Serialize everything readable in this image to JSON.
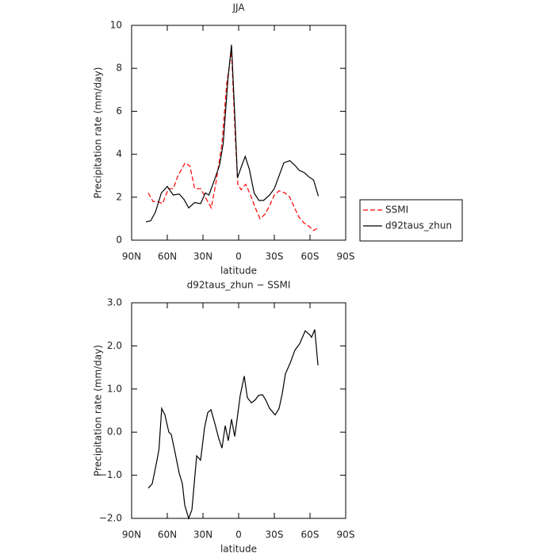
{
  "chart_data": [
    {
      "type": "line",
      "title": "JJA",
      "xlabel": "latitude",
      "ylabel": "Precipitation rate (mm/day)",
      "xlim": [
        90,
        -90
      ],
      "xticks": [
        {
          "value": 90,
          "label": "90N"
        },
        {
          "value": 60,
          "label": "60N"
        },
        {
          "value": 30,
          "label": "30N"
        },
        0,
        {
          "value": -30,
          "label": "30S"
        },
        {
          "value": -60,
          "label": "60S"
        },
        {
          "value": -90,
          "label": "90S"
        }
      ],
      "ylim": [
        0,
        10
      ],
      "yticks": [
        0,
        2,
        4,
        6,
        8,
        10
      ],
      "legend": "right",
      "series": [
        {
          "name": "SSMI",
          "color": "#ff0000",
          "linestyle": "dashed",
          "x": [
            76,
            72,
            68,
            64,
            59,
            55,
            51,
            45,
            41,
            37,
            32,
            27,
            23,
            19,
            14,
            10,
            6,
            3,
            0.7,
            -2,
            -6,
            -10,
            -14,
            -18,
            -22,
            -26,
            -30,
            -34,
            -39,
            -43,
            -47,
            -51,
            -55,
            -59,
            -63,
            -66
          ],
          "values": [
            2.2,
            1.8,
            1.8,
            1.7,
            2.4,
            2.4,
            3.0,
            3.6,
            3.45,
            2.4,
            2.4,
            1.9,
            1.5,
            2.7,
            4.5,
            7.3,
            8.8,
            5.0,
            2.6,
            2.35,
            2.6,
            2.1,
            1.5,
            1.0,
            1.2,
            1.6,
            2.1,
            2.3,
            2.2,
            2.0,
            1.5,
            1.05,
            0.8,
            0.65,
            0.45,
            0.55
          ]
        },
        {
          "name": "d92taus_zhun",
          "color": "#000000",
          "linestyle": "solid",
          "x": [
            78,
            74,
            70,
            65,
            60,
            55,
            50,
            46,
            42,
            37,
            32,
            28,
            25,
            21,
            16,
            13,
            9,
            6,
            3,
            1,
            -1.5,
            -5.5,
            -9,
            -13,
            -17,
            -21,
            -26,
            -30,
            -34,
            -38,
            -43,
            -47,
            -51,
            -55,
            -59,
            -63,
            -67
          ],
          "values": [
            0.85,
            0.9,
            1.3,
            2.2,
            2.5,
            2.1,
            2.15,
            1.9,
            1.5,
            1.75,
            1.7,
            2.2,
            2.1,
            2.7,
            3.5,
            4.5,
            7.5,
            9.1,
            5.5,
            2.9,
            3.3,
            3.9,
            3.3,
            2.2,
            1.85,
            1.85,
            2.1,
            2.4,
            3.0,
            3.6,
            3.7,
            3.5,
            3.25,
            3.15,
            2.95,
            2.8,
            2.05
          ]
        }
      ]
    },
    {
      "type": "line",
      "title": "d92taus_zhun − SSMI",
      "xlabel": "latitude",
      "ylabel": "Precipitation rate (mm/day)",
      "xlim": [
        90,
        -90
      ],
      "xticks": [
        {
          "value": 90,
          "label": "90N"
        },
        {
          "value": 60,
          "label": "60N"
        },
        {
          "value": 30,
          "label": "30N"
        },
        0,
        {
          "value": -30,
          "label": "30S"
        },
        {
          "value": -60,
          "label": "60S"
        },
        {
          "value": -90,
          "label": "90S"
        }
      ],
      "ylim": [
        -2,
        3
      ],
      "yticks": [
        {
          "value": -2,
          "label": "−2.0"
        },
        {
          "value": -1,
          "label": "−1.0"
        },
        {
          "value": 0,
          "label": "0.0"
        },
        {
          "value": 1,
          "label": "1.0"
        },
        {
          "value": 2,
          "label": "2.0"
        },
        {
          "value": 3,
          "label": "3.0"
        }
      ],
      "color": "#000000",
      "x": [
        76,
        72.7,
        69,
        67,
        64.7,
        62,
        58.7,
        56.7,
        54,
        50,
        47.3,
        45.3,
        42,
        39.3,
        35.3,
        32,
        28.7,
        26,
        23.3,
        20,
        16.7,
        14,
        11.3,
        8.7,
        6,
        3.3,
        1.3,
        -1.3,
        -4.7,
        -7.3,
        -10.7,
        -14,
        -16.7,
        -20,
        -22.7,
        -26,
        -30.7,
        -34,
        -36.7,
        -39.3,
        -43.3,
        -47.3,
        -51.3,
        -56,
        -60,
        -61.3,
        -64,
        -66.7
      ],
      "values": [
        -1.3,
        -1.2,
        -0.7,
        -0.4,
        0.55,
        0.4,
        0.0,
        -0.05,
        -0.4,
        -0.95,
        -1.2,
        -1.7,
        -2.0,
        -1.8,
        -0.55,
        -0.65,
        0.1,
        0.45,
        0.52,
        0.2,
        -0.15,
        -0.37,
        0.15,
        -0.2,
        0.3,
        -0.1,
        0.3,
        0.85,
        1.3,
        0.8,
        0.68,
        0.75,
        0.85,
        0.87,
        0.75,
        0.55,
        0.4,
        0.55,
        0.9,
        1.35,
        1.6,
        1.9,
        2.05,
        2.35,
        2.25,
        2.2,
        2.38,
        1.55
      ]
    }
  ]
}
